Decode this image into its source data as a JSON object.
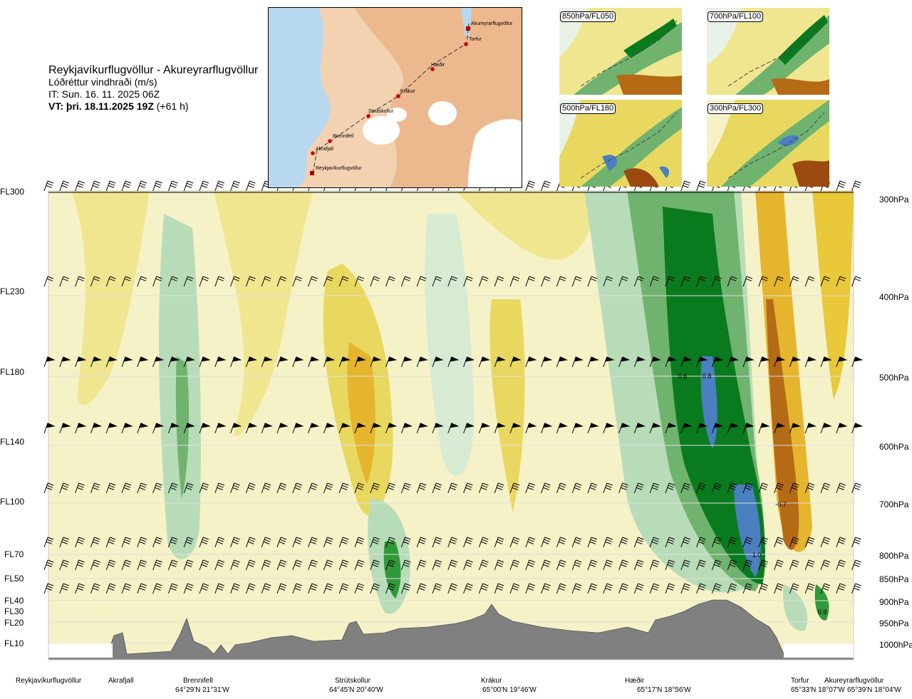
{
  "header": {
    "title": "Reykjavíkurflugvöllur - Akureyrarflugvöllur",
    "subtitle": "Lóðréttur vindhraði (m/s)",
    "it_line": "IT: Sun. 16. 11. 2025 06Z",
    "vt_bold": "VT: þri. 18.11.2025 19Z",
    "vt_offset": "(+61 h)"
  },
  "map": {
    "waypoints": [
      "Akureyrarflugvöllur",
      "Torfur",
      "Hæðir",
      "Krákur",
      "Strútskollur",
      "Brennifell",
      "Akrafjall",
      "Reykjavíkurflugvöllur"
    ]
  },
  "insets": [
    {
      "label": "850hPa/FL050"
    },
    {
      "label": "700hPa/FL100"
    },
    {
      "label": "500hPa/FL180"
    },
    {
      "label": "300hPa/FL300"
    }
  ],
  "flight_levels": [
    "FL300",
    "FL230",
    "FL180",
    "FL140",
    "FL100",
    "FL70",
    "FL50",
    "FL40",
    "FL30",
    "FL20",
    "FL10"
  ],
  "pressure_levels": [
    "300hPa",
    "400hPa",
    "500hPa",
    "600hPa",
    "700hPa",
    "800hPa",
    "850hPa",
    "900hPa",
    "950hPa",
    "1000hPa"
  ],
  "contour_labels": [
    "0.6",
    "0.8",
    "-0.7",
    "1.0",
    "0.9"
  ],
  "locations": [
    {
      "name": "Reykjavíkurflugvöllur",
      "coord": ""
    },
    {
      "name": "Akrafjall",
      "coord": ""
    },
    {
      "name": "Brennifell",
      "coord": "64°29'N 21°31'W"
    },
    {
      "name": "Strútskollur",
      "coord": "64°45'N 20°40'W"
    },
    {
      "name": "Krákur",
      "coord": "65°00'N 19°46'W"
    },
    {
      "name": "Hæðir",
      "coord": "65°17'N 18°56'W"
    },
    {
      "name": "Torfur",
      "coord": "65°33'N 18°07'W"
    },
    {
      "name": "Akureyrarflugvöllur",
      "coord": "65°39'N 18°04'W"
    }
  ],
  "colors": {
    "strong_up": "#4a7fc0",
    "up_dark": "#0a7a1f",
    "up_mid": "#2f9a3a",
    "up_light": "#b9dcb8",
    "neutral": "#f6f2c8",
    "down_light": "#f0e690",
    "down_mid": "#e9c83a",
    "down_strong": "#d98a1a",
    "down_extreme": "#9b4a12",
    "terrain": "#808080",
    "sea": "#b8d8f0",
    "land": "#f1c9a3"
  }
}
